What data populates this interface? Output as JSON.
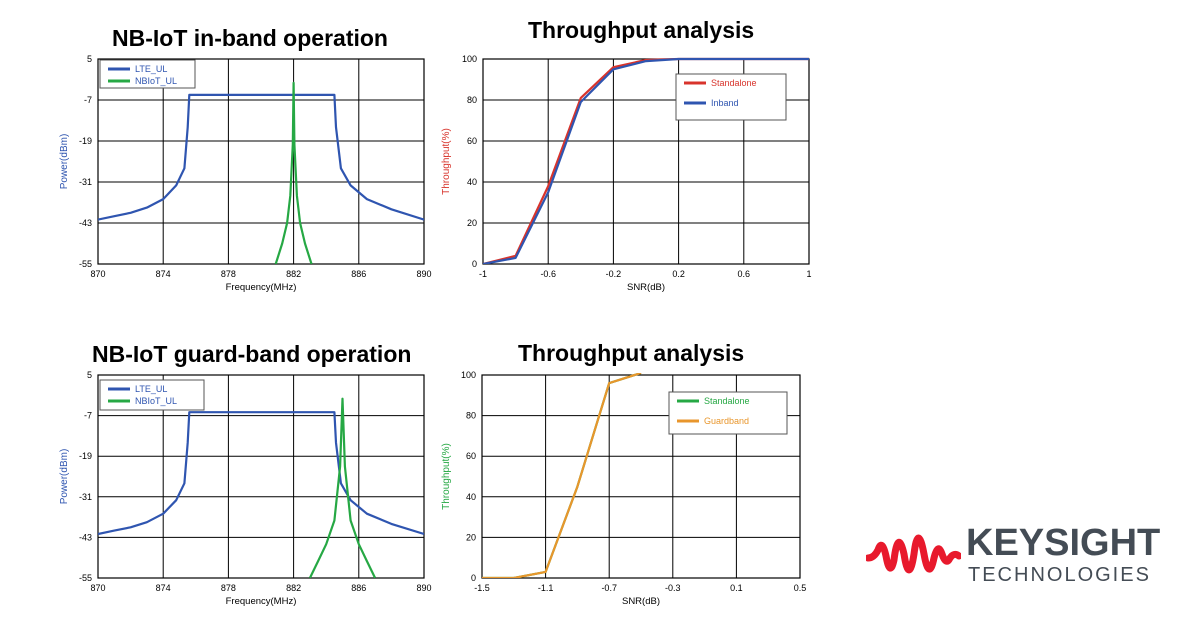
{
  "titles": {
    "inband": "NB-IoT in-band operation",
    "throughput_top": "Throughput analysis",
    "guardband": "NB-IoT guard-band operation",
    "throughput_bottom": "Throughput analysis"
  },
  "brand": {
    "name": "KEYSIGHT",
    "sub": "TECHNOLOGIES",
    "color": "#e8192c",
    "text_color": "#444c55"
  },
  "colors": {
    "lte": "#2f55b0",
    "nbiot": "#26a844",
    "standalone_red": "#d8342c",
    "inband_blue": "#2f55b0",
    "standalone_green": "#26a844",
    "guardband": "#e8962c"
  },
  "chart_data": [
    {
      "id": "spectrum_inband",
      "type": "line",
      "xlabel": "Frequency(MHz)",
      "ylabel": "Power(dBm)",
      "xlim": [
        870,
        890
      ],
      "ylim": [
        -55,
        5
      ],
      "xticks": [
        870,
        874,
        878,
        882,
        886,
        890
      ],
      "yticks": [
        5,
        -7,
        -19,
        -31,
        -43,
        -55
      ],
      "grid": true,
      "legend": "top-left",
      "series": [
        {
          "name": "LTE_UL",
          "color": "#2f55b0",
          "x": [
            870,
            871,
            872,
            873,
            874,
            874.8,
            875.3,
            875.5,
            875.6,
            880,
            884,
            884.5,
            884.6,
            884.9,
            885.5,
            886.5,
            888,
            890
          ],
          "y": [
            -42,
            -41,
            -40,
            -38.5,
            -36,
            -32,
            -27,
            -15,
            -5.5,
            -5.5,
            -5.5,
            -5.5,
            -15,
            -27,
            -32,
            -36,
            -39,
            -42
          ]
        },
        {
          "name": "NBIoT_UL",
          "color": "#26a844",
          "x": [
            880.9,
            881.3,
            881.6,
            881.8,
            881.95,
            882.0,
            882.05,
            882.2,
            882.4,
            882.7,
            883.1
          ],
          "y": [
            -55,
            -49,
            -43,
            -35,
            -20,
            -2,
            -20,
            -35,
            -43,
            -49,
            -55
          ]
        }
      ]
    },
    {
      "id": "throughput_inband",
      "type": "line",
      "xlabel": "SNR(dB)",
      "ylabel": "Throughput(%)",
      "xlim": [
        -1,
        1
      ],
      "ylim": [
        0,
        100
      ],
      "xticks": [
        "-1",
        "-0.6",
        "-0.2",
        "0.2",
        "0.6",
        "1"
      ],
      "yticks": [
        0,
        20,
        40,
        60,
        80,
        100
      ],
      "grid": true,
      "legend": "top-right",
      "series": [
        {
          "name": "Standalone",
          "color": "#d8342c",
          "x": [
            -1,
            -0.8,
            -0.6,
            -0.4,
            -0.2,
            0,
            0.2,
            0.4,
            0.6,
            0.8,
            1
          ],
          "y": [
            0,
            4,
            38,
            81,
            96,
            99.5,
            100,
            100,
            100,
            100,
            100
          ]
        },
        {
          "name": "Inband",
          "color": "#2f55b0",
          "x": [
            -1,
            -0.8,
            -0.6,
            -0.4,
            -0.2,
            0,
            0.2,
            0.4,
            0.6,
            0.8,
            1
          ],
          "y": [
            0,
            3,
            35,
            79,
            95,
            99,
            100,
            100,
            100,
            100,
            100
          ]
        }
      ]
    },
    {
      "id": "spectrum_guardband",
      "type": "line",
      "xlabel": "Frequency(MHz)",
      "ylabel": "Power(dBm)",
      "xlim": [
        870,
        890
      ],
      "ylim": [
        -55,
        5
      ],
      "xticks": [
        870,
        874,
        878,
        882,
        886,
        890
      ],
      "yticks": [
        5,
        -7,
        -19,
        -31,
        -43,
        -55
      ],
      "grid": true,
      "legend": "top-left",
      "series": [
        {
          "name": "LTE_UL",
          "color": "#2f55b0",
          "x": [
            870,
            871,
            872,
            873,
            874,
            874.8,
            875.3,
            875.5,
            875.6,
            880,
            884,
            884.5,
            884.6,
            884.9,
            885.5,
            886.5,
            888,
            890
          ],
          "y": [
            -42,
            -41,
            -40,
            -38.5,
            -36,
            -32,
            -27,
            -15,
            -6,
            -6,
            -6,
            -6,
            -15,
            -27,
            -32,
            -36,
            -39,
            -42
          ]
        },
        {
          "name": "NBIoT_UL",
          "color": "#26a844",
          "x": [
            883.0,
            883.5,
            884.0,
            884.5,
            884.85,
            885.0,
            885.15,
            885.5,
            886.0,
            886.5,
            887.0
          ],
          "y": [
            -55,
            -50,
            -45,
            -38,
            -22,
            -2,
            -22,
            -38,
            -45,
            -50,
            -55
          ]
        }
      ]
    },
    {
      "id": "throughput_guardband",
      "type": "line",
      "xlabel": "SNR(dB)",
      "ylabel": "Throughput(%)",
      "xlim": [
        -1.5,
        0.5
      ],
      "ylim": [
        0,
        100
      ],
      "xticks": [
        "-1.5",
        "-1.1",
        "-0.7",
        "-0.3",
        "0.1",
        "0.5"
      ],
      "yticks": [
        0,
        20,
        40,
        60,
        80,
        100
      ],
      "grid": true,
      "legend": "top-right",
      "series": [
        {
          "name": "Standalone",
          "color": "#26a844",
          "x": [
            -1.5,
            -1.3,
            -1.1,
            -0.9,
            -0.7,
            -0.5
          ],
          "y": [
            0,
            0,
            3,
            45,
            96,
            101
          ]
        },
        {
          "name": "Guardband",
          "color": "#e8962c",
          "x": [
            -1.5,
            -1.3,
            -1.1,
            -0.9,
            -0.7,
            -0.5
          ],
          "y": [
            0,
            0,
            3,
            45,
            96,
            101
          ]
        }
      ]
    }
  ]
}
